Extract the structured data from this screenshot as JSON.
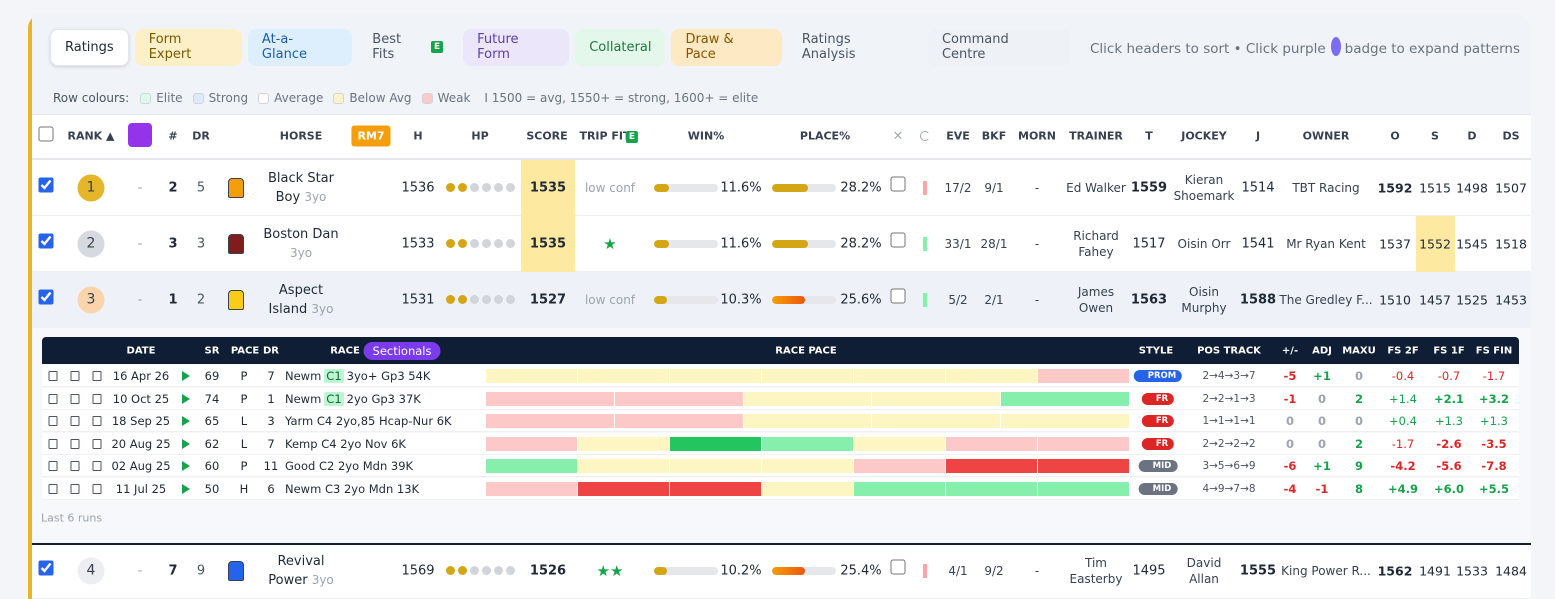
{
  "tabs": [
    {
      "label": "Ratings",
      "color": "#ffffff",
      "text": "#1f2937"
    },
    {
      "label": "Form Expert",
      "color": "#fdf0c8",
      "text": "#7a5a00"
    },
    {
      "label": "At-a-Glance",
      "color": "#ddeefc",
      "text": "#1b5fa8"
    },
    {
      "label": "Best Fits",
      "badge": "E",
      "color": "transparent",
      "text": "#4b5563"
    },
    {
      "label": "Future Form",
      "color": "#ece6fb",
      "text": "#5b3fb0"
    },
    {
      "label": "Collateral",
      "color": "#e3f7ea",
      "text": "#1d7a3e"
    },
    {
      "label": "Draw & Pace",
      "color": "#fde9c4",
      "text": "#8a5500"
    },
    {
      "label": "Ratings Analysis",
      "color": "transparent",
      "text": "#4b5563"
    },
    {
      "label": "Command Centre",
      "color": "#eef1f5",
      "text": "#4b5563"
    }
  ],
  "hint": {
    "before": "Click headers to sort • Click purple",
    "after": "badge to expand patterns"
  },
  "legend": {
    "label": "Row colours:",
    "items": [
      {
        "label": "Elite",
        "color": "#dcfce7"
      },
      {
        "label": "Strong",
        "color": "#dbeafe"
      },
      {
        "label": "Average",
        "color": "#ffffff"
      },
      {
        "label": "Below Avg",
        "color": "#fef3c7"
      },
      {
        "label": "Weak",
        "color": "#fecaca"
      }
    ],
    "note": "I 1500 = avg, 1550+ = strong, 1600+ = elite"
  },
  "columns": [
    "RANK ▲",
    "#",
    "DR",
    "HORSE",
    "RM7",
    "H",
    "HP",
    "SCORE",
    "TRIP FIT",
    "WIN%",
    "PLACE%",
    "×",
    "EVE",
    "BKF",
    "MORN",
    "TRAINER",
    "T",
    "JOCKEY",
    "J",
    "OWNER",
    "O",
    "S",
    "D",
    "DS"
  ],
  "trip_badge": "E",
  "rows": [
    {
      "rank": 1,
      "rank_color": "#e5b62a",
      "dash": "-",
      "num": 2,
      "dr": 5,
      "horse": "Black Star Boy",
      "age": "3yo",
      "silk": "#f59e0b",
      "h": 1536,
      "hp": 2,
      "score": 1535,
      "score_hl": true,
      "trip": "low conf",
      "win": 11.6,
      "win_label": "11.6%",
      "place": 28.2,
      "place_label": "28.2%",
      "trend_color": "#f8a5a5",
      "eve": "17/2",
      "bkf": "9/1",
      "morn": "-",
      "trainer": "Ed Walker",
      "t": 1559,
      "jockey": "Kieran Shoemark",
      "j": 1514,
      "owner": "TBT Racing",
      "o": 1592,
      "s": 1515,
      "d": 1498,
      "ds": 1507,
      "s_hl": false,
      "bg": "#ffffff"
    },
    {
      "rank": 2,
      "rank_color": "#d6d9df",
      "dash": "-",
      "num": 3,
      "dr": 3,
      "horse": "Boston Dan",
      "age": "3yo",
      "silk": "#7f1d1d",
      "h": 1533,
      "hp": 2,
      "score": 1535,
      "score_hl": true,
      "trip": "★",
      "win": 11.6,
      "win_label": "11.6%",
      "place": 28.2,
      "place_label": "28.2%",
      "trend_color": "#86efac",
      "eve": "33/1",
      "bkf": "28/1",
      "morn": "-",
      "trainer": "Richard Fahey",
      "t": 1517,
      "jockey": "Oisin Orr",
      "j": 1541,
      "owner": "Mr Ryan Kent",
      "o": 1537,
      "s": 1552,
      "d": 1545,
      "ds": 1518,
      "s_hl": true,
      "bg": "#ffffff"
    },
    {
      "rank": 3,
      "rank_color": "#fcd4ab",
      "dash": "-",
      "num": 1,
      "dr": 2,
      "horse": "Aspect Island",
      "age": "3yo",
      "silk": "#facc15",
      "h": 1531,
      "hp": 2,
      "score": 1527,
      "score_hl": false,
      "trip": "low conf",
      "win": 10.3,
      "win_label": "10.3%",
      "place": 25.6,
      "place_label": "25.6%",
      "trend_color": "#86efac",
      "eve": "5/2",
      "bkf": "2/1",
      "morn": "-",
      "trainer": "James Owen",
      "t": 1563,
      "jockey": "Oisin Murphy",
      "j": 1588,
      "owner": "The Gredley F...",
      "o": 1510,
      "s": 1457,
      "d": 1525,
      "ds": 1453,
      "s_hl": false,
      "bg": "#eef2f8"
    },
    {
      "rank": 4,
      "rank_color": "#eceef1",
      "dash": "-",
      "num": 7,
      "dr": 9,
      "horse": "Revival Power",
      "age": "3yo",
      "silk": "#2563eb",
      "h": 1569,
      "hp": 2,
      "score": 1526,
      "score_hl": false,
      "trip": "★★",
      "win": 10.2,
      "win_label": "10.2%",
      "place": 25.4,
      "place_label": "25.4%",
      "trend_color": "#f8a5a5",
      "eve": "4/1",
      "bkf": "9/2",
      "morn": "-",
      "trainer": "Tim Easterby",
      "t": 1495,
      "jockey": "David Allan",
      "j": 1555,
      "owner": "King Power R...",
      "o": 1562,
      "s": 1491,
      "d": 1533,
      "ds": 1484,
      "s_hl": false,
      "bg": "#ffffff"
    }
  ],
  "runs_panel": {
    "headers": [
      "DATE",
      "SR",
      "PACE",
      "DR",
      "RACE",
      "Sectionals",
      "RACE PACE",
      "STYLE",
      "POS TRACK",
      "+/-",
      "ADJ",
      "MAXU",
      "FS 2F",
      "FS 1F",
      "FS FIN"
    ],
    "runs": [
      {
        "date": "16 Apr 26",
        "sr": 69,
        "pace": "P",
        "dr": 7,
        "course": "Newm",
        "class": "C1",
        "rest": "3yo+ Gp3 54K",
        "segments": [
          "#fdf6c3",
          "#fdf6c3",
          "#fdf6c3",
          "#fdf6c3",
          "#fdf6c3",
          "#fdf6c3",
          "#fcc8c8"
        ],
        "style": "PROM",
        "style_color": "#2563eb",
        "pos": "2→4→3→7",
        "pm": "-5",
        "adj": "+1",
        "maxu": "0",
        "fs2f": "-0.4",
        "fs1f": "-0.7",
        "fsfin": "-1.7"
      },
      {
        "date": "10 Oct 25",
        "sr": 74,
        "pace": "P",
        "dr": 1,
        "course": "Newm",
        "class": "C1",
        "rest": "2yo Gp3 37K",
        "segments": [
          "#fcc8c8",
          "#fcc8c8",
          "#fdf6c3",
          "#fdf6c3",
          "#86efac"
        ],
        "style": "FR",
        "style_color": "#dc2626",
        "pos": "2→2→1→3",
        "pm": "-1",
        "adj": "0",
        "maxu": "2",
        "fs2f": "+1.4",
        "fs1f": "+2.1",
        "fsfin": "+3.2"
      },
      {
        "date": "18 Sep 25",
        "sr": 65,
        "pace": "L",
        "dr": 3,
        "course": "Yarm C4 2yo,85 Hcap-Nur 6K",
        "segments": [
          "#fcc8c8",
          "#fcc8c8",
          "#fdf6c3",
          "#fdf6c3",
          "#fdf6c3"
        ],
        "style": "FR",
        "style_color": "#dc2626",
        "pos": "1→1→1→1",
        "pm": "0",
        "adj": "0",
        "maxu": "0",
        "fs2f": "+0.4",
        "fs1f": "+1.3",
        "fsfin": "+1.3"
      },
      {
        "date": "20 Aug 25",
        "sr": 62,
        "pace": "L",
        "dr": 7,
        "course": "Kemp C4 2yo Nov 6K",
        "segments": [
          "#fcc8c8",
          "#fdf6c3",
          "#22c55e",
          "#86efac",
          "#fdf6c3",
          "#fcc8c8",
          "#fcc8c8"
        ],
        "style": "FR",
        "style_color": "#dc2626",
        "pos": "2→2→2→2",
        "pm": "0",
        "adj": "0",
        "maxu": "2",
        "fs2f": "-1.7",
        "fs1f": "-2.6",
        "fsfin": "-3.5"
      },
      {
        "date": "02 Aug 25",
        "sr": 60,
        "pace": "P",
        "dr": 11,
        "course": "Good C2 2yo Mdn 39K",
        "segments": [
          "#86efac",
          "#fdf6c3",
          "#fdf6c3",
          "#fdf6c3",
          "#fcc8c8",
          "#ef4444",
          "#ef4444"
        ],
        "style": "MID",
        "style_color": "#6b7280",
        "pos": "3→5→6→9",
        "pm": "-6",
        "adj": "+1",
        "maxu": "9",
        "fs2f": "-4.2",
        "fs1f": "-5.6",
        "fsfin": "-7.8"
      },
      {
        "date": "11 Jul 25",
        "sr": 50,
        "pace": "H",
        "dr": 6,
        "course": "Newm C3 2yo Mdn 13K",
        "segments": [
          "#fcc8c8",
          "#ef4444",
          "#ef4444",
          "#fdf6c3",
          "#86efac",
          "#86efac",
          "#86efac"
        ],
        "style": "MID",
        "style_color": "#6b7280",
        "pos": "4→9→7→8",
        "pm": "-4",
        "adj": "-1",
        "maxu": "8",
        "fs2f": "+4.9",
        "fs1f": "+6.0",
        "fsfin": "+5.5"
      }
    ],
    "footer": "Last 6 runs"
  }
}
